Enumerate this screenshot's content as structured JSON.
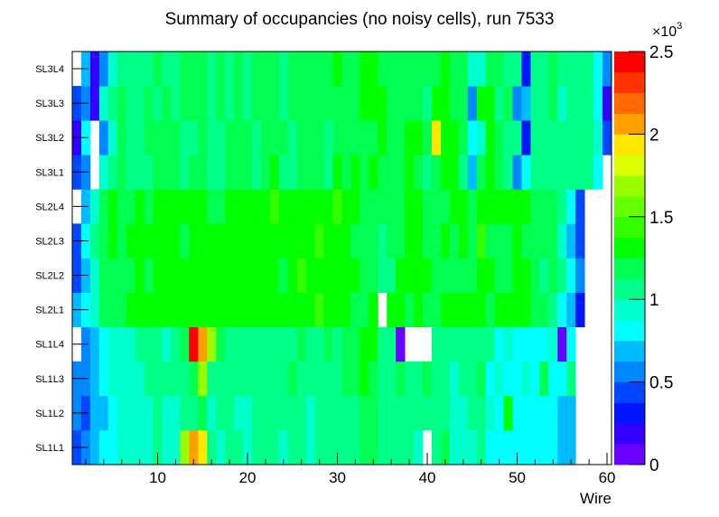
{
  "chart_data": {
    "type": "heatmap",
    "title": "Summary of occupancies (no noisy cells), run 7533",
    "xlabel": "Wire",
    "ylabel": "",
    "xlim": [
      0.5,
      60.5
    ],
    "x_ticks": [
      "10",
      "20",
      "30",
      "40",
      "50",
      "60"
    ],
    "x_tick_values": [
      10,
      20,
      30,
      40,
      50,
      60
    ],
    "y_categories": [
      "SL1L1",
      "SL1L2",
      "SL1L3",
      "SL1L4",
      "SL2L1",
      "SL2L2",
      "SL2L3",
      "SL2L4",
      "SL3L1",
      "SL3L2",
      "SL3L3",
      "SL3L4"
    ],
    "zlim": [
      0,
      2500
    ],
    "z_exponent_label": "×10",
    "z_exponent_power": "3",
    "z_ticks": [
      "0",
      "0.5",
      "1",
      "1.5",
      "2",
      "2.5"
    ],
    "z_tick_values": [
      0,
      500,
      1000,
      1500,
      2000,
      2500
    ],
    "palette": [
      "#6a00ff",
      "#3300ff",
      "#0015ff",
      "#0047ff",
      "#0088ff",
      "#00bbff",
      "#00ffff",
      "#00ffcc",
      "#00ff88",
      "#00ff50",
      "#00ff00",
      "#33ff00",
      "#66ff00",
      "#99ff00",
      "#ddff00",
      "#ffe800",
      "#ffa000",
      "#ff6a00",
      "#ff3300",
      "#ff0000"
    ],
    "z": [
      [
        440,
        560,
        690,
        810,
        810,
        940,
        940,
        940,
        940,
        1060,
        940,
        940,
        1690,
        2060,
        1940,
        1060,
        940,
        1060,
        1060,
        940,
        1060,
        1060,
        1060,
        940,
        1060,
        1060,
        940,
        1060,
        1060,
        1060,
        1060,
        1060,
        1190,
        1190,
        1060,
        1060,
        1060,
        1060,
        940,
        0,
        1060,
        1190,
        940,
        940,
        940,
        1060,
        810,
        810,
        810,
        810,
        810,
        810,
        810,
        810,
        690,
        690,
        0,
        0,
        0,
        0
      ],
      [
        560,
        440,
        690,
        690,
        810,
        940,
        940,
        940,
        940,
        1060,
        940,
        940,
        1060,
        1060,
        1190,
        940,
        1060,
        1060,
        940,
        940,
        1060,
        1060,
        1060,
        1060,
        1060,
        1060,
        940,
        1060,
        1060,
        1060,
        1060,
        1060,
        1190,
        1190,
        1060,
        1060,
        1060,
        1060,
        1060,
        1060,
        1060,
        1060,
        940,
        940,
        1060,
        1060,
        940,
        810,
        1310,
        810,
        810,
        810,
        810,
        810,
        690,
        690,
        0,
        0,
        0,
        0
      ],
      [
        560,
        560,
        690,
        810,
        940,
        940,
        940,
        940,
        1060,
        1060,
        1060,
        1060,
        1060,
        1190,
        1690,
        1060,
        1060,
        1060,
        1060,
        1060,
        1060,
        1060,
        1060,
        1060,
        1190,
        1060,
        1060,
        1060,
        1060,
        1060,
        1190,
        1190,
        1310,
        1190,
        1060,
        1060,
        1190,
        1060,
        1060,
        1190,
        1060,
        1060,
        940,
        1060,
        1060,
        1190,
        810,
        940,
        810,
        810,
        940,
        810,
        1190,
        810,
        810,
        1060,
        0,
        0,
        0,
        0
      ],
      [
        0,
        560,
        690,
        810,
        940,
        940,
        940,
        1060,
        1060,
        1060,
        940,
        1060,
        1190,
        2440,
        2060,
        1690,
        1190,
        1060,
        1060,
        1060,
        1060,
        1060,
        1060,
        1060,
        1060,
        1190,
        1060,
        1060,
        1190,
        1060,
        1190,
        1190,
        1310,
        1310,
        1060,
        1060,
        60,
        0,
        0,
        0,
        1060,
        1060,
        1060,
        1060,
        1060,
        1060,
        1060,
        810,
        940,
        810,
        810,
        810,
        810,
        940,
        60,
        810,
        0,
        0,
        0,
        0
      ],
      [
        690,
        810,
        940,
        1190,
        1190,
        1190,
        1310,
        1310,
        1310,
        1310,
        1310,
        1310,
        1310,
        1310,
        1310,
        1310,
        1310,
        1310,
        1310,
        1310,
        1310,
        1310,
        1310,
        1310,
        1310,
        1310,
        1310,
        1440,
        1310,
        1310,
        1310,
        1190,
        1190,
        1310,
        0,
        1310,
        1310,
        1190,
        1310,
        1190,
        1190,
        1310,
        1310,
        1310,
        1310,
        1310,
        1190,
        1310,
        1310,
        1310,
        1310,
        1190,
        1190,
        1060,
        810,
        690,
        310,
        0,
        0,
        0
      ],
      [
        440,
        690,
        940,
        1190,
        1190,
        1190,
        1190,
        1310,
        1190,
        1310,
        1310,
        1310,
        1310,
        1310,
        1310,
        1310,
        1310,
        1310,
        1310,
        1310,
        1310,
        1310,
        1310,
        1190,
        1310,
        1440,
        1310,
        1310,
        1310,
        1310,
        1310,
        1310,
        1190,
        1190,
        1060,
        1060,
        1310,
        1310,
        1310,
        1310,
        1190,
        1190,
        1190,
        1190,
        1190,
        1310,
        1310,
        1190,
        1190,
        1310,
        1310,
        1190,
        1060,
        1190,
        1060,
        810,
        560,
        0,
        0,
        0
      ],
      [
        440,
        810,
        1060,
        1190,
        1310,
        1190,
        1310,
        1310,
        1310,
        1310,
        1310,
        1310,
        1190,
        1310,
        1310,
        1310,
        1310,
        1310,
        1310,
        1310,
        1310,
        1310,
        1310,
        1310,
        1310,
        1310,
        1310,
        1440,
        1310,
        1310,
        1310,
        1190,
        1190,
        1190,
        1060,
        1190,
        1190,
        1310,
        1310,
        1190,
        1190,
        1310,
        1190,
        1310,
        1190,
        1440,
        1190,
        1190,
        1190,
        1310,
        1190,
        1190,
        1190,
        1190,
        940,
        690,
        440,
        0,
        0,
        0
      ],
      [
        0,
        690,
        940,
        1190,
        1310,
        1190,
        1190,
        1310,
        1190,
        1310,
        1310,
        1310,
        1310,
        1310,
        1310,
        1190,
        1190,
        1310,
        1310,
        1310,
        1310,
        1310,
        1440,
        1310,
        1310,
        1310,
        1310,
        1310,
        1310,
        1440,
        1310,
        1310,
        1190,
        1190,
        1190,
        1190,
        1190,
        1310,
        1310,
        1190,
        1190,
        1190,
        1310,
        1310,
        1190,
        1310,
        1310,
        1310,
        1310,
        1310,
        1310,
        1190,
        1190,
        1190,
        1060,
        810,
        440,
        0,
        0,
        0
      ],
      [
        440,
        560,
        0,
        940,
        1060,
        1190,
        1060,
        1060,
        1060,
        1190,
        1190,
        1190,
        1060,
        1190,
        1190,
        1060,
        1060,
        1190,
        1190,
        1190,
        1060,
        1190,
        1310,
        1060,
        1060,
        1190,
        1190,
        1190,
        1060,
        1310,
        1190,
        1310,
        1190,
        1310,
        1190,
        1190,
        1190,
        1310,
        1190,
        1060,
        1190,
        1310,
        1310,
        1060,
        690,
        1190,
        1310,
        1190,
        1060,
        560,
        810,
        1060,
        1060,
        1060,
        1060,
        1060,
        1060,
        1060,
        810,
        0
      ],
      [
        190,
        810,
        0,
        560,
        940,
        1190,
        1060,
        1060,
        1190,
        1190,
        1190,
        1190,
        1060,
        1060,
        1190,
        1060,
        1060,
        1190,
        1190,
        1190,
        1060,
        1190,
        1190,
        1190,
        1060,
        1190,
        1190,
        1190,
        1060,
        1190,
        1190,
        1190,
        1190,
        1190,
        1310,
        1190,
        1190,
        1310,
        1310,
        1190,
        1940,
        1310,
        1310,
        1190,
        810,
        940,
        1310,
        1190,
        1060,
        1060,
        310,
        1060,
        1060,
        1060,
        1060,
        1060,
        1060,
        1060,
        940,
        440
      ],
      [
        440,
        560,
        190,
        940,
        1060,
        1190,
        1060,
        1060,
        1190,
        1060,
        1190,
        1060,
        1190,
        1190,
        1190,
        1060,
        1190,
        1060,
        1190,
        1060,
        1190,
        1190,
        1190,
        1060,
        1190,
        1190,
        1190,
        1190,
        1190,
        1190,
        1190,
        1190,
        1310,
        1310,
        1310,
        1190,
        1190,
        1190,
        1190,
        1060,
        1310,
        1310,
        1190,
        1190,
        560,
        1310,
        1310,
        1060,
        1190,
        560,
        690,
        1060,
        1060,
        1190,
        940,
        1060,
        1060,
        1060,
        810,
        190
      ],
      [
        0,
        690,
        190,
        560,
        940,
        1060,
        1060,
        1060,
        1060,
        1190,
        1060,
        1060,
        1190,
        1190,
        1190,
        1060,
        1190,
        1060,
        1190,
        1060,
        1190,
        1190,
        1190,
        1060,
        1190,
        1190,
        1190,
        1190,
        1190,
        1310,
        1190,
        1190,
        1310,
        1310,
        1190,
        1190,
        1190,
        1190,
        1190,
        1190,
        1190,
        1310,
        1190,
        1190,
        940,
        940,
        1190,
        1190,
        1060,
        1060,
        310,
        1060,
        1060,
        1190,
        1060,
        1060,
        1060,
        1060,
        810,
        560
      ]
    ]
  }
}
